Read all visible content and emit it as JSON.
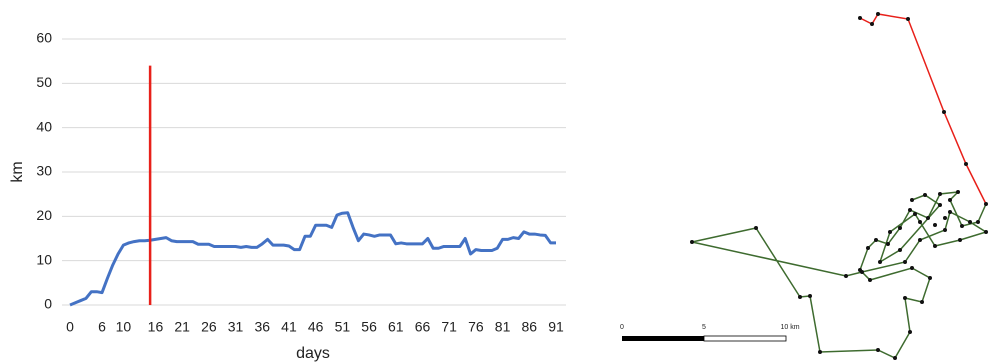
{
  "chart_data": {
    "type": "line",
    "x_label": "days",
    "y_label": "km",
    "x": [
      0,
      1,
      2,
      3,
      4,
      5,
      6,
      7,
      8,
      9,
      10,
      11,
      12,
      13,
      14,
      15,
      16,
      17,
      18,
      19,
      20,
      21,
      22,
      23,
      24,
      25,
      26,
      27,
      28,
      29,
      30,
      31,
      32,
      33,
      34,
      35,
      36,
      37,
      38,
      39,
      40,
      41,
      42,
      43,
      44,
      45,
      46,
      47,
      48,
      49,
      50,
      51,
      52,
      53,
      54,
      55,
      56,
      57,
      58,
      59,
      60,
      61,
      62,
      63,
      64,
      65,
      66,
      67,
      68,
      69,
      70,
      71,
      72,
      73,
      74,
      75,
      76,
      77,
      78,
      79,
      80,
      81,
      82,
      83,
      84,
      85,
      86,
      87,
      88,
      89,
      90,
      91
    ],
    "series": [
      {
        "name": "km",
        "color": "#4472c4",
        "values": [
          0,
          0.5,
          1,
          1.5,
          3,
          3,
          2.8,
          6,
          9,
          11.5,
          13.5,
          14,
          14.3,
          14.5,
          14.5,
          14.6,
          14.8,
          15,
          15.2,
          14.5,
          14.3,
          14.3,
          14.3,
          14.3,
          13.7,
          13.7,
          13.7,
          13.2,
          13.2,
          13.2,
          13.2,
          13.2,
          13,
          13.2,
          13,
          13,
          13.8,
          14.8,
          13.5,
          13.5,
          13.5,
          13.3,
          12.5,
          12.5,
          15.5,
          15.5,
          18,
          18,
          18,
          17.5,
          20.3,
          20.7,
          20.8,
          17.5,
          14.5,
          16,
          15.8,
          15.5,
          15.8,
          15.8,
          15.8,
          13.8,
          14,
          13.8,
          13.8,
          13.8,
          13.8,
          15,
          12.8,
          12.8,
          13.2,
          13.2,
          13.2,
          13.2,
          15,
          11.5,
          12.5,
          12.3,
          12.3,
          12.3,
          12.8,
          14.8,
          14.8,
          15.2,
          15,
          16.5,
          16,
          16,
          15.8,
          15.7,
          14,
          14
        ]
      }
    ],
    "xlim": [
      0,
      91
    ],
    "xticks": [
      0,
      6,
      10,
      16,
      21,
      26,
      31,
      36,
      41,
      46,
      51,
      56,
      61,
      66,
      71,
      76,
      81,
      86,
      91
    ],
    "ylim": [
      0,
      60
    ],
    "yticks": [
      0,
      10,
      20,
      30,
      40,
      50,
      60
    ],
    "grid": true,
    "marker": {
      "x": 15,
      "y_top": 54,
      "color": "#e8201a"
    }
  },
  "map": {
    "scale_labels": [
      "0",
      "5",
      "10 km"
    ]
  }
}
